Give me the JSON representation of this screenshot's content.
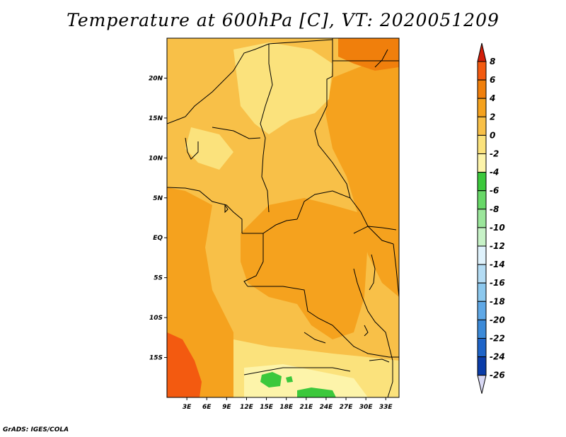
{
  "title": "Temperature at 600hPa [C], VT: 2020051209",
  "credit": "GrADS: IGES/COLA",
  "map": {
    "lon_range": [
      0,
      35
    ],
    "lat_range": [
      -20,
      25
    ],
    "x_ticks": [
      "3E",
      "6E",
      "9E",
      "12E",
      "15E",
      "18E",
      "21E",
      "24E",
      "27E",
      "30E",
      "33E"
    ],
    "y_ticks": [
      "20N",
      "15N",
      "10N",
      "5N",
      "EQ",
      "5S",
      "10S",
      "15S"
    ],
    "variable": "Temperature",
    "level": "600hPa",
    "units": "C",
    "valid_time": "2020051209"
  },
  "colorbar": {
    "labels": [
      "8",
      "6",
      "4",
      "2",
      "0",
      "-2",
      "-4",
      "-6",
      "-8",
      "-10",
      "-12",
      "-14",
      "-16",
      "-18",
      "-20",
      "-22",
      "-24",
      "-26"
    ],
    "colors": [
      "#e8240e",
      "#f35a10",
      "#f07f0c",
      "#f5a21e",
      "#f8c048",
      "#fbe27c",
      "#fdf4aa",
      "#3cc83c",
      "#68d868",
      "#9be69b",
      "#c7f2c7",
      "#dff2fc",
      "#b4dcf4",
      "#8cc8ee",
      "#5fa8e6",
      "#3c8ad8",
      "#1e64c8",
      "#0a3ca8",
      "#08207a"
    ],
    "top_arrow_color": "#d21e0a",
    "bottom_arrow_color": "#d8d8f4"
  },
  "palette": {
    "warm_2_4": "#f5a21e",
    "warm_0_2": "#f8c048",
    "warm_m2_0": "#fbe27c",
    "warm_m4_m2": "#fdf4aa",
    "green": "#3cc83c",
    "hot_4_6": "#f07f0c",
    "hot_6_8": "#f35a10"
  }
}
